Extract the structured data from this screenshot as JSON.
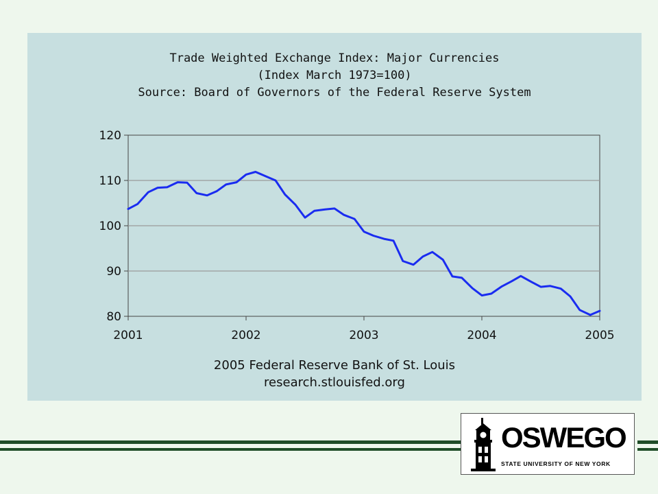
{
  "chart_data": {
    "type": "line",
    "title": [
      "Trade Weighted Exchange Index: Major Currencies",
      "(Index March 1973=100)",
      "Source: Board of Governors of the Federal Reserve System"
    ],
    "xlabel": "",
    "ylabel": "",
    "xlim": [
      2001,
      2005
    ],
    "ylim": [
      80,
      120
    ],
    "x_ticks": [
      "2001",
      "2002",
      "2003",
      "2004",
      "2005"
    ],
    "y_ticks": [
      "120",
      "110",
      "100",
      "90",
      "80"
    ],
    "grid": "horizontal",
    "series": [
      {
        "color": "#1a2cf0",
        "points": [
          [
            2001.0,
            103.7
          ],
          [
            2001.08,
            104.8
          ],
          [
            2001.17,
            107.4
          ],
          [
            2001.25,
            108.4
          ],
          [
            2001.33,
            108.5
          ],
          [
            2001.42,
            109.6
          ],
          [
            2001.5,
            109.5
          ],
          [
            2001.58,
            107.2
          ],
          [
            2001.67,
            106.7
          ],
          [
            2001.75,
            107.6
          ],
          [
            2001.83,
            109.1
          ],
          [
            2001.92,
            109.6
          ],
          [
            2002.0,
            111.3
          ],
          [
            2002.08,
            111.9
          ],
          [
            2002.17,
            110.9
          ],
          [
            2002.25,
            110.0
          ],
          [
            2002.33,
            106.9
          ],
          [
            2002.42,
            104.6
          ],
          [
            2002.5,
            101.8
          ],
          [
            2002.58,
            103.3
          ],
          [
            2002.67,
            103.6
          ],
          [
            2002.75,
            103.8
          ],
          [
            2002.83,
            102.4
          ],
          [
            2002.92,
            101.5
          ],
          [
            2003.0,
            98.7
          ],
          [
            2003.08,
            97.8
          ],
          [
            2003.17,
            97.1
          ],
          [
            2003.25,
            96.7
          ],
          [
            2003.33,
            92.2
          ],
          [
            2003.42,
            91.4
          ],
          [
            2003.5,
            93.2
          ],
          [
            2003.58,
            94.2
          ],
          [
            2003.67,
            92.5
          ],
          [
            2003.75,
            88.8
          ],
          [
            2003.83,
            88.5
          ],
          [
            2003.92,
            86.2
          ],
          [
            2004.0,
            84.6
          ],
          [
            2004.08,
            85.0
          ],
          [
            2004.17,
            86.6
          ],
          [
            2004.25,
            87.7
          ],
          [
            2004.33,
            88.9
          ],
          [
            2004.42,
            87.6
          ],
          [
            2004.5,
            86.5
          ],
          [
            2004.58,
            86.7
          ],
          [
            2004.67,
            86.1
          ],
          [
            2004.75,
            84.4
          ],
          [
            2004.83,
            81.4
          ],
          [
            2004.92,
            80.3
          ],
          [
            2005.0,
            81.2
          ]
        ]
      }
    ],
    "credits": [
      "2005 Federal Reserve Bank of St. Louis",
      "research.stlouisfed.org"
    ]
  },
  "logo": {
    "word": "OSWEGO",
    "tagline": "STATE UNIVERSITY OF NEW YORK"
  },
  "colors": {
    "slide_background": "#eef7ed",
    "chart_panel": "#c7dfe0",
    "series_line": "#1a2cf0",
    "rule": "#1f4d28"
  }
}
